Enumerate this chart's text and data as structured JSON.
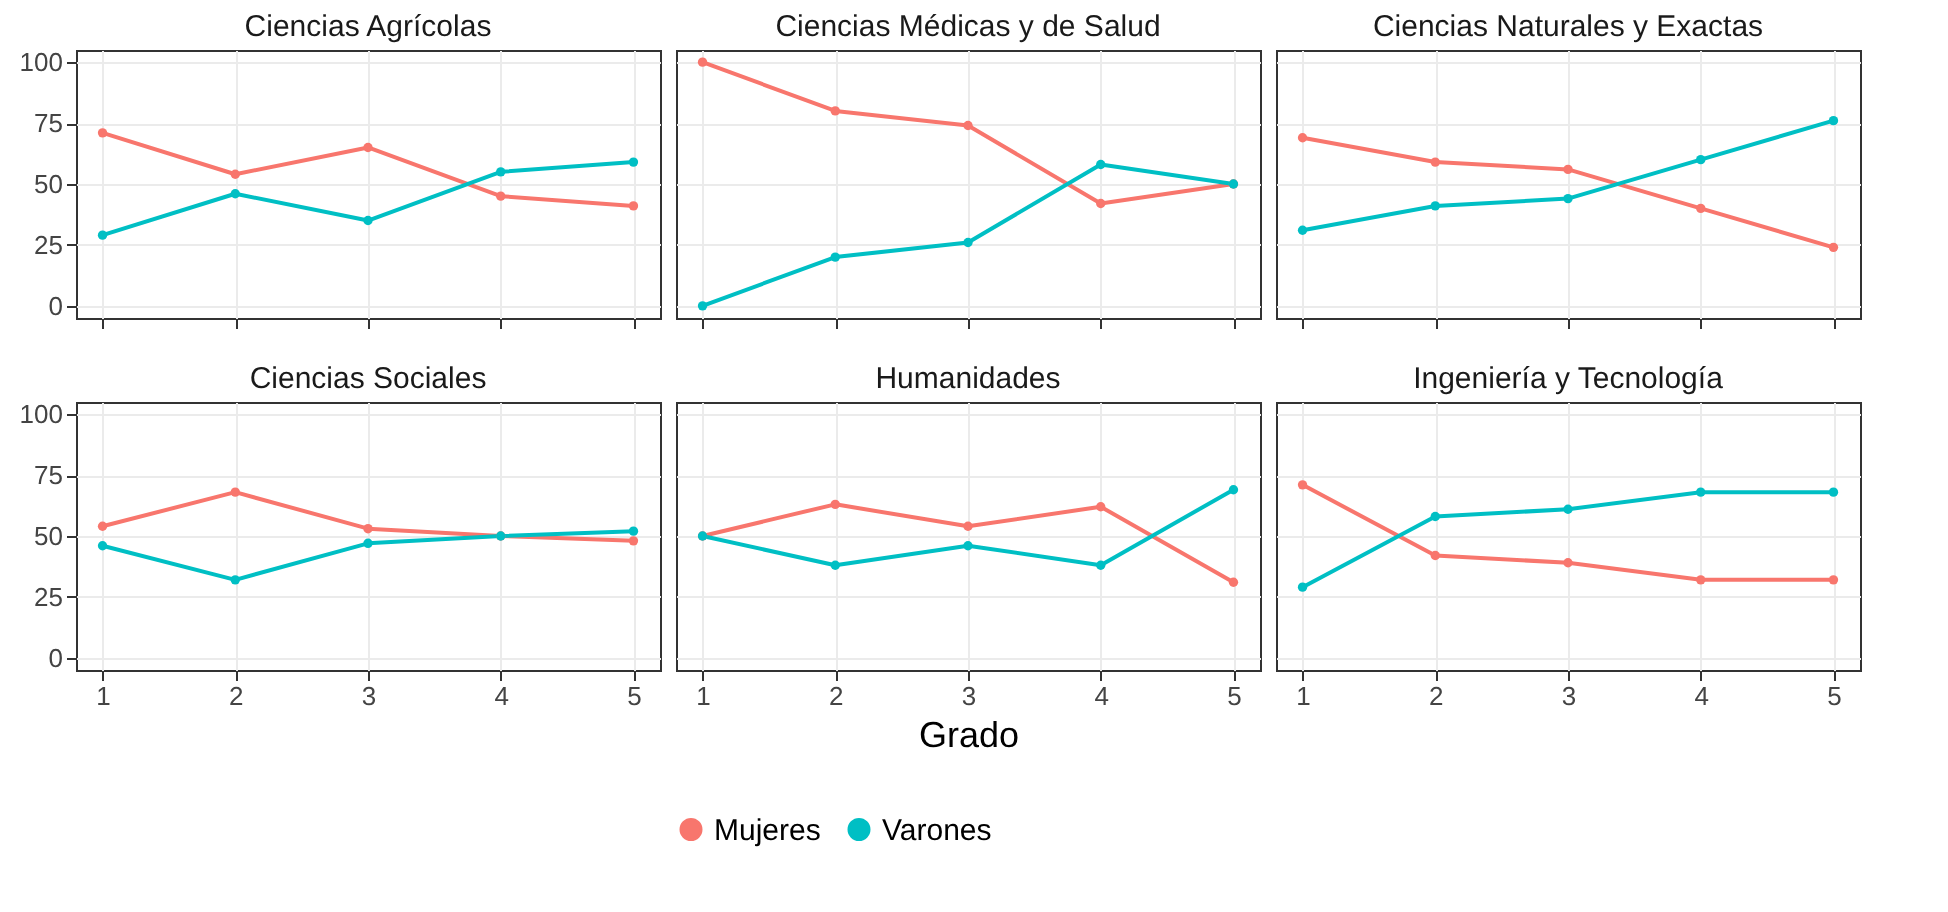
{
  "chart_data": [
    {
      "type": "line",
      "title": "Ciencias Agrícolas",
      "x": [
        1,
        2,
        3,
        4,
        5
      ],
      "xlim": [
        0.8,
        5.2
      ],
      "xticks": [
        1,
        2,
        3,
        4,
        5
      ],
      "ylim": [
        -5,
        105
      ],
      "yticks": [
        0,
        25,
        50,
        75,
        100
      ],
      "grid": true,
      "marker": "circle",
      "tick_labels": "y",
      "series": [
        {
          "color": "#f8766d",
          "values": [
            71,
            54,
            65,
            45,
            41
          ]
        },
        {
          "color": "#00bfc4",
          "values": [
            29,
            46,
            35,
            55,
            59
          ]
        }
      ]
    },
    {
      "type": "line",
      "title": "Ciencias Médicas y de Salud",
      "x": [
        1,
        2,
        3,
        4,
        5
      ],
      "xlim": [
        0.8,
        5.2
      ],
      "xticks": [
        1,
        2,
        3,
        4,
        5
      ],
      "ylim": [
        -5,
        105
      ],
      "yticks": [
        0,
        25,
        50,
        75,
        100
      ],
      "grid": true,
      "marker": "circle",
      "tick_labels": false,
      "series": [
        {
          "color": "#f8766d",
          "values": [
            100,
            80,
            74,
            42,
            50
          ]
        },
        {
          "color": "#00bfc4",
          "values": [
            0,
            20,
            26,
            58,
            50
          ]
        }
      ]
    },
    {
      "type": "line",
      "title": "Ciencias Naturales y Exactas",
      "x": [
        1,
        2,
        3,
        4,
        5
      ],
      "xlim": [
        0.8,
        5.2
      ],
      "xticks": [
        1,
        2,
        3,
        4,
        5
      ],
      "ylim": [
        -5,
        105
      ],
      "yticks": [
        0,
        25,
        50,
        75,
        100
      ],
      "grid": true,
      "marker": "circle",
      "tick_labels": false,
      "series": [
        {
          "color": "#f8766d",
          "values": [
            69,
            59,
            56,
            40,
            24
          ]
        },
        {
          "color": "#00bfc4",
          "values": [
            31,
            41,
            44,
            60,
            76
          ]
        }
      ]
    },
    {
      "type": "line",
      "title": "Ciencias Sociales",
      "x": [
        1,
        2,
        3,
        4,
        5
      ],
      "xlim": [
        0.8,
        5.2
      ],
      "xticks": [
        1,
        2,
        3,
        4,
        5
      ],
      "ylim": [
        -5,
        105
      ],
      "yticks": [
        0,
        25,
        50,
        75,
        100
      ],
      "grid": true,
      "marker": "circle",
      "series": [
        {
          "color": "#f8766d",
          "values": [
            54,
            68,
            53,
            50,
            48
          ]
        },
        {
          "color": "#00bfc4",
          "values": [
            46,
            32,
            47,
            50,
            52
          ]
        }
      ]
    },
    {
      "type": "line",
      "title": "Humanidades",
      "xlabel": "Grado",
      "x": [
        1,
        2,
        3,
        4,
        5
      ],
      "xlim": [
        0.8,
        5.2
      ],
      "xticks": [
        1,
        2,
        3,
        4,
        5
      ],
      "ylim": [
        -5,
        105
      ],
      "yticks": [
        0,
        25,
        50,
        75,
        100
      ],
      "grid": true,
      "marker": "circle",
      "tick_labels": "x",
      "legend": "bottom",
      "series": [
        {
          "name": "Mujeres",
          "color": "#f8766d",
          "values": [
            50,
            63,
            54,
            62,
            31
          ]
        },
        {
          "name": "Varones",
          "color": "#00bfc4",
          "values": [
            50,
            38,
            46,
            38,
            69
          ]
        }
      ]
    },
    {
      "type": "line",
      "title": "Ingeniería y Tecnología",
      "x": [
        1,
        2,
        3,
        4,
        5
      ],
      "xlim": [
        0.8,
        5.2
      ],
      "xticks": [
        1,
        2,
        3,
        4,
        5
      ],
      "ylim": [
        -5,
        105
      ],
      "yticks": [
        0,
        25,
        50,
        75,
        100
      ],
      "grid": true,
      "marker": "circle",
      "tick_labels": "x",
      "series": [
        {
          "color": "#f8766d",
          "values": [
            71,
            42,
            39,
            32,
            32
          ]
        },
        {
          "color": "#00bfc4",
          "values": [
            29,
            58,
            61,
            68,
            68
          ]
        }
      ]
    }
  ]
}
